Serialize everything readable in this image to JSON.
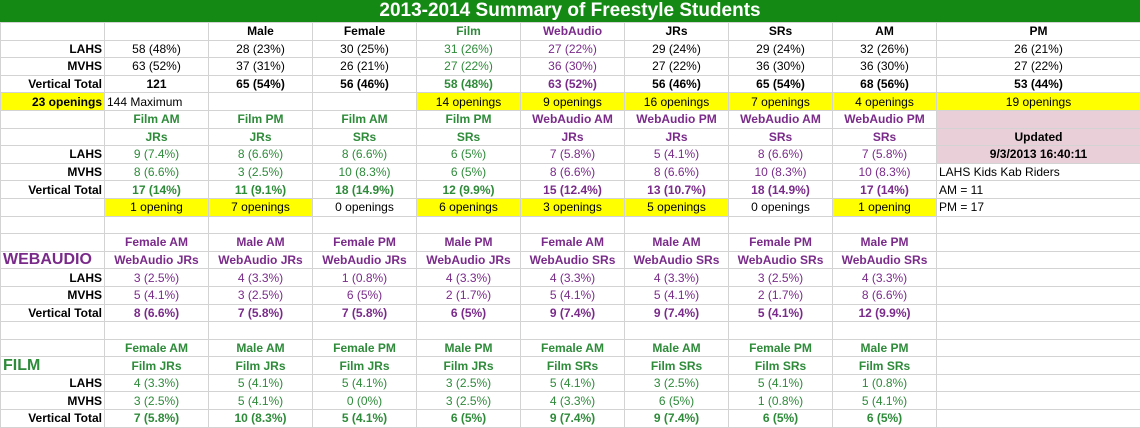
{
  "title": "2013-2014 Summary of Freestyle Students",
  "colors": {
    "green_header": "#148a14",
    "green_text": "#2e8b3a",
    "purple_text": "#7a2b8a",
    "highlight_yellow": "#ffff00",
    "updated_pink": "#e8cfd8"
  },
  "summary": {
    "headers": [
      "",
      "",
      "Male",
      "Female",
      "Film",
      "WebAudio",
      "JRs",
      "SRs",
      "AM",
      "PM"
    ],
    "rows": [
      {
        "label": "LAHS",
        "cells": [
          "58 (48%)",
          "28 (23%)",
          "30 (25%)",
          "31 (26%)",
          "27 (22%)",
          "29 (24%)",
          "29 (24%)",
          "32 (26%)",
          "26 (21%)"
        ]
      },
      {
        "label": "MVHS",
        "cells": [
          "63 (52%)",
          "37 (31%)",
          "26 (21%)",
          "27 (22%)",
          "36 (30%)",
          "27 (22%)",
          "36 (30%)",
          "36 (30%)",
          "27 (22%)"
        ]
      },
      {
        "label": "Vertical Total",
        "cells": [
          "121",
          "65 (54%)",
          "56 (46%)",
          "58 (48%)",
          "63 (52%)",
          "56 (46%)",
          "65 (54%)",
          "68 (56%)",
          "53 (44%)"
        ]
      }
    ],
    "openings": {
      "label": "23 openings",
      "cells": [
        "144 Maximum",
        "",
        "",
        "14 openings",
        "9 openings",
        "16 openings",
        "7 openings",
        "4 openings",
        "19 openings"
      ]
    }
  },
  "session": {
    "headers_top": [
      "Film AM",
      "Film PM",
      "Film AM",
      "Film PM",
      "WebAudio AM",
      "WebAudio PM",
      "WebAudio AM",
      "WebAudio PM"
    ],
    "headers_bottom": [
      "JRs",
      "JRs",
      "SRs",
      "SRs",
      "JRs",
      "JRs",
      "SRs",
      "SRs"
    ],
    "rows": [
      {
        "label": "LAHS",
        "cells": [
          "9 (7.4%)",
          "8 (6.6%)",
          "8 (6.6%)",
          "6 (5%)",
          "7 (5.8%)",
          "5 (4.1%)",
          "8 (6.6%)",
          "7 (5.8%)"
        ]
      },
      {
        "label": "MVHS",
        "cells": [
          "8 (6.6%)",
          "3 (2.5%)",
          "10 (8.3%)",
          "6 (5%)",
          "8 (6.6%)",
          "8 (6.6%)",
          "10 (8.3%)",
          "10 (8.3%)"
        ]
      },
      {
        "label": "Vertical Total",
        "cells": [
          "17 (14%)",
          "11 (9.1%)",
          "18 (14.9%)",
          "12 (9.9%)",
          "15 (12.4%)",
          "13 (10.7%)",
          "18 (14.9%)",
          "17 (14%)"
        ]
      }
    ],
    "openings": [
      "1 opening",
      "7 openings",
      "0 openings",
      "6 openings",
      "3 openings",
      "5 openings",
      "0 openings",
      "1 opening"
    ],
    "side": {
      "updated_label": "Updated",
      "updated_value": "9/3/2013 16:40:11",
      "riders_label": "LAHS Kids Kab Riders",
      "am": "AM = 11",
      "pm": "PM = 17"
    }
  },
  "webaudio": {
    "section_label": "WEBAUDIO",
    "headers_top": [
      "Female AM",
      "Male AM",
      "Female PM",
      "Male PM",
      "Female AM",
      "Male AM",
      "Female PM",
      "Male PM"
    ],
    "headers_bottom": [
      "WebAudio JRs",
      "WebAudio JRs",
      "WebAudio JRs",
      "WebAudio JRs",
      "WebAudio SRs",
      "WebAudio SRs",
      "WebAudio SRs",
      "WebAudio SRs"
    ],
    "rows": [
      {
        "label": "LAHS",
        "cells": [
          "3 (2.5%)",
          "4 (3.3%)",
          "1 (0.8%)",
          "4 (3.3%)",
          "4 (3.3%)",
          "4 (3.3%)",
          "3 (2.5%)",
          "4 (3.3%)"
        ]
      },
      {
        "label": "MVHS",
        "cells": [
          "5 (4.1%)",
          "3 (2.5%)",
          "6 (5%)",
          "2 (1.7%)",
          "5 (4.1%)",
          "5 (4.1%)",
          "2 (1.7%)",
          "8 (6.6%)"
        ]
      },
      {
        "label": "Vertical Total",
        "cells": [
          "8 (6.6%)",
          "7 (5.8%)",
          "7 (5.8%)",
          "6 (5%)",
          "9 (7.4%)",
          "9 (7.4%)",
          "5 (4.1%)",
          "12 (9.9%)"
        ]
      }
    ]
  },
  "film": {
    "section_label": "FILM",
    "headers_top": [
      "Female AM",
      "Male AM",
      "Female PM",
      "Male PM",
      "Female AM",
      "Male AM",
      "Female PM",
      "Male PM"
    ],
    "headers_bottom": [
      "Film JRs",
      "Film JRs",
      "Film JRs",
      "Film JRs",
      "Film SRs",
      "Film SRs",
      "Film SRs",
      "Film SRs"
    ],
    "rows": [
      {
        "label": "LAHS",
        "cells": [
          "4 (3.3%)",
          "5 (4.1%)",
          "5 (4.1%)",
          "3 (2.5%)",
          "5 (4.1%)",
          "3 (2.5%)",
          "5 (4.1%)",
          "1 (0.8%)"
        ]
      },
      {
        "label": "MVHS",
        "cells": [
          "3 (2.5%)",
          "5 (4.1%)",
          "0 (0%)",
          "3 (2.5%)",
          "4 (3.3%)",
          "6 (5%)",
          "1 (0.8%)",
          "5 (4.1%)"
        ]
      },
      {
        "label": "Vertical Total",
        "cells": [
          "7 (5.8%)",
          "10 (8.3%)",
          "5 (4.1%)",
          "6 (5%)",
          "9 (7.4%)",
          "9 (7.4%)",
          "6 (5%)",
          "6 (5%)"
        ]
      }
    ]
  }
}
